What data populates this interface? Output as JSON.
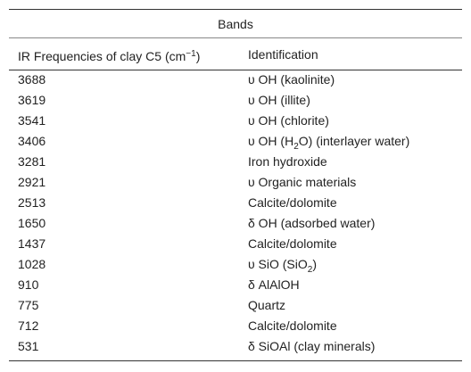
{
  "table": {
    "title": "Bands",
    "header": [
      [
        "IR Frequencies of clay C5 (cm",
        {
          "text": "−1",
          "position": "sup"
        },
        ")"
      ],
      [
        "Identification"
      ]
    ],
    "rows": [
      [
        3688,
        [
          "υ OH (kaolinite)"
        ]
      ],
      [
        3619,
        [
          "υ OH (illite)"
        ]
      ],
      [
        3541,
        [
          "υ OH (chlorite)"
        ]
      ],
      [
        3406,
        [
          "υ OH (H",
          {
            "text": "2",
            "position": "sub"
          },
          "O) (interlayer water)"
        ]
      ],
      [
        3281,
        [
          "Iron hydroxide"
        ]
      ],
      [
        2921,
        [
          "υ Organic materials"
        ]
      ],
      [
        2513,
        [
          "Calcite/dolomite"
        ]
      ],
      [
        1650,
        [
          "δ OH (adsorbed water)"
        ]
      ],
      [
        1437,
        [
          "Calcite/dolomite"
        ]
      ],
      [
        1028,
        [
          "υ SiO (SiO",
          {
            "text": "2",
            "position": "sub"
          },
          ")"
        ]
      ],
      [
        910,
        [
          "δ AlAlOH"
        ]
      ],
      [
        775,
        [
          "Quartz"
        ]
      ],
      [
        712,
        [
          "Calcite/dolomite"
        ]
      ],
      [
        531,
        [
          "δ SiOAl (clay minerals)"
        ]
      ]
    ]
  }
}
